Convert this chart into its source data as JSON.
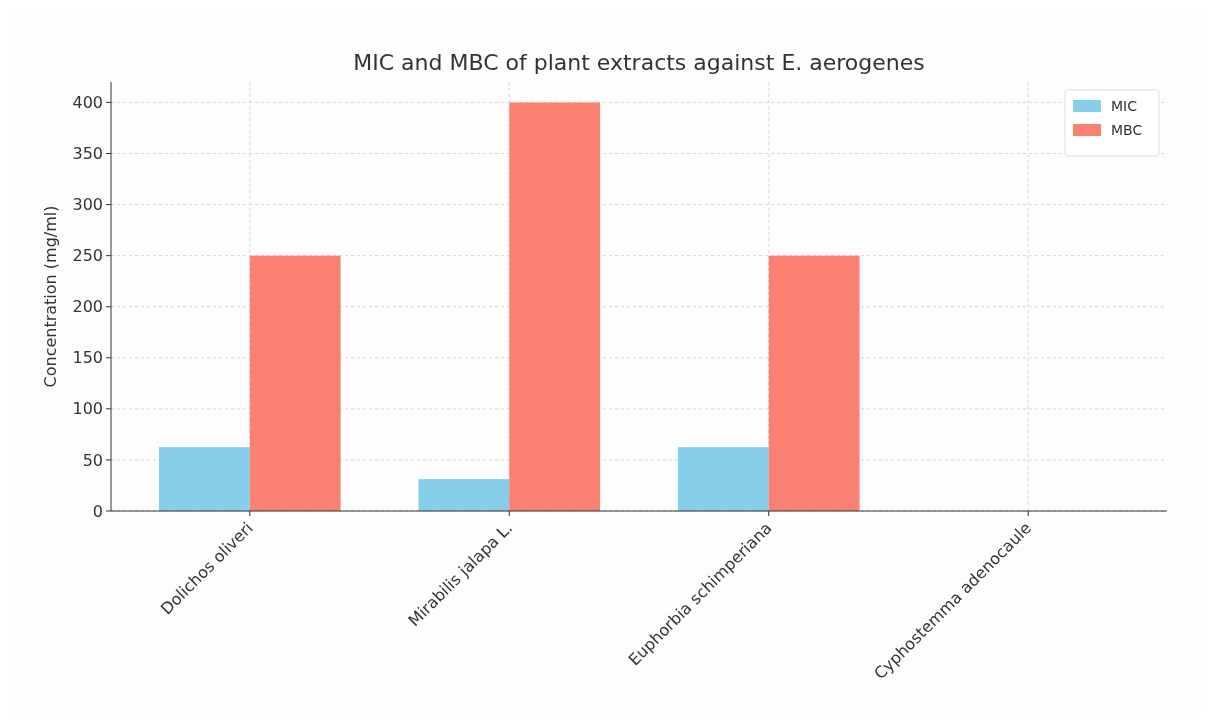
{
  "chart_data": {
    "type": "bar",
    "title": "MIC and MBC of plant extracts against E. aerogenes",
    "ylabel": "Concentration (mg/ml)",
    "categories": [
      "Dolichos oliveri",
      "Mirabilis jalapa L.",
      "Euphorbia schimperiana",
      "Cyphostemma adenocaule"
    ],
    "series": [
      {
        "name": "MIC",
        "color": "#87ceeb",
        "values": [
          62.5,
          31.25,
          62.5,
          0
        ]
      },
      {
        "name": "MBC",
        "color": "#fa8072",
        "values": [
          250,
          400,
          250,
          0
        ]
      }
    ],
    "ylim": [
      0,
      420
    ],
    "yticks": [
      0,
      50,
      100,
      150,
      200,
      250,
      300,
      350,
      400
    ],
    "grid": true,
    "legend": "top right"
  }
}
